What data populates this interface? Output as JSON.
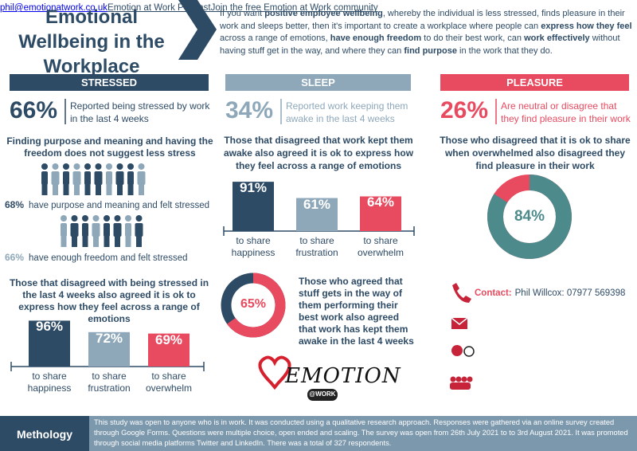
{
  "header": {
    "title": "Emotional Wellbeing in the Workplace",
    "intro": [
      {
        "text": "If you want ",
        "bold": false
      },
      {
        "text": "positive employee wellbeing",
        "bold": true
      },
      {
        "text": ", whereby the individual is less stressed, finds pleasure in their work and sleeps better, then it's important to create a workplace where people can ",
        "bold": false
      },
      {
        "text": "express how they feel",
        "bold": true
      },
      {
        "text": " across a range of emotions, ",
        "bold": false
      },
      {
        "text": "have enough freedom",
        "bold": true
      },
      {
        "text": " to do their best work, can ",
        "bold": false
      },
      {
        "text": "work effectively",
        "bold": true
      },
      {
        "text": " without having stuff get in the way, and where they can ",
        "bold": false
      },
      {
        "text": "find purpose",
        "bold": true
      },
      {
        "text": " in the work that they do.",
        "bold": false
      }
    ]
  },
  "stressed": {
    "heading": "STRESSED",
    "stat": "66%",
    "stat_text": "Reported being stressed by work in the last 4 weeks",
    "subheading": "Finding purpose and meaning and having the freedom does not suggest less stress",
    "icon_rows": [
      {
        "stat": "68%",
        "text": "have purpose and meaning and felt stressed"
      },
      {
        "stat": "66%",
        "text": "have enough freedom and felt stressed"
      }
    ],
    "chart": {
      "title": "Those that disagreed with being stressed in the last 4 weeks also agreed it is ok to express how they feel across a range of emotions",
      "categories": [
        "to share happiness",
        "to share frustration",
        "to share overwhelm"
      ],
      "values": [
        96,
        72,
        69
      ],
      "value_labels": [
        "96%",
        "72%",
        "69%"
      ]
    }
  },
  "sleep": {
    "heading": "SLEEP",
    "stat": "34%",
    "stat_text": "Reported work keeping them awake in the last 4 weeks",
    "chart": {
      "title": "Those that disagreed that work kept them awake also agreed it is ok to express how they feel across a range of emotions",
      "categories": [
        "to share happiness",
        "to share frustration",
        "to share overwhelm"
      ],
      "values": [
        91,
        61,
        64
      ],
      "value_labels": [
        "91%",
        "61%",
        "64%"
      ]
    },
    "donut": {
      "value": 65,
      "label": "65%",
      "text": "Those who agreed that stuff gets in the way of them performing their best work also agreed that work has kept them awake in the last 4 weeks"
    },
    "logo": {
      "name": "EMOTION",
      "tag": "@WORK"
    }
  },
  "pleasure": {
    "heading": "PLEASURE",
    "stat": "26%",
    "stat_text": "Are neutral or disagree that they find pleasure in their work",
    "subheading": "Those who disagreed that it is ok to share when overwhelmed also disagreed they find pleasure in their work",
    "donut": {
      "value": 84,
      "label": "84%"
    },
    "contact": {
      "label": "Contact:",
      "phone": "Phil Willcox: 07977 569398",
      "email": "phil@emotionatwork.co.uk",
      "podcast": "Emotion at Work Podcast",
      "community": "Join the free Emotion at Work community"
    }
  },
  "footer": {
    "label": "Methology",
    "text": "This study was open to anyone who is in work. It was conducted using a qualitative research approach. Responses were gathered via an online survey created through Google Forms. Questions were multiple choice, open ended and scaling. The survey was open from 26th July 2021 to to 3rd August 2021. It was promoted through social media platforms Twitter and LinkedIn. There was a total of 327 respondents."
  }
}
